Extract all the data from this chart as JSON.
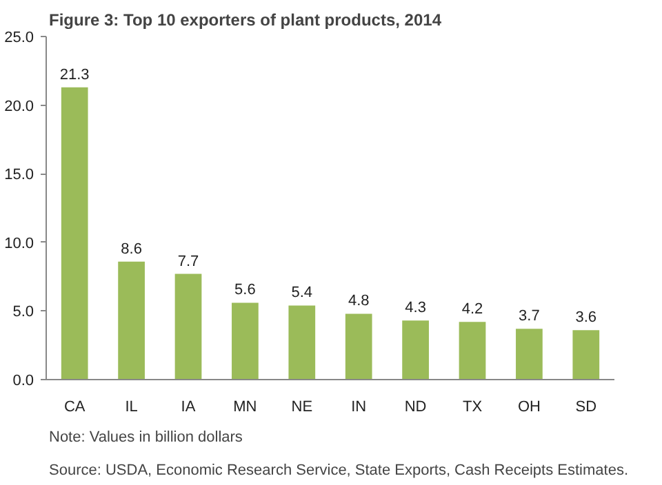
{
  "chart_data": {
    "type": "bar",
    "title": "Figure 3: Top 10 exporters of plant products, 2014",
    "categories": [
      "CA",
      "IL",
      "IA",
      "MN",
      "NE",
      "IN",
      "ND",
      "TX",
      "OH",
      "SD"
    ],
    "values": [
      21.3,
      8.6,
      7.7,
      5.6,
      5.4,
      4.8,
      4.3,
      4.2,
      3.7,
      3.6
    ],
    "color": "#9bbb59",
    "data_labels": true,
    "grid": false,
    "ylim": [
      0,
      25
    ],
    "yticks": [
      {
        "value": 0,
        "label": "0.0"
      },
      {
        "value": 5,
        "label": "5.0"
      },
      {
        "value": 10,
        "label": "10.0"
      },
      {
        "value": 15,
        "label": "15.0"
      },
      {
        "value": 20,
        "label": "20.0"
      },
      {
        "value": 25,
        "label": "25.0"
      }
    ],
    "annotations": [
      "Note: Values in billion dollars",
      "Source:  USDA, Economic Research Service, State Exports, Cash Receipts Estimates."
    ]
  }
}
